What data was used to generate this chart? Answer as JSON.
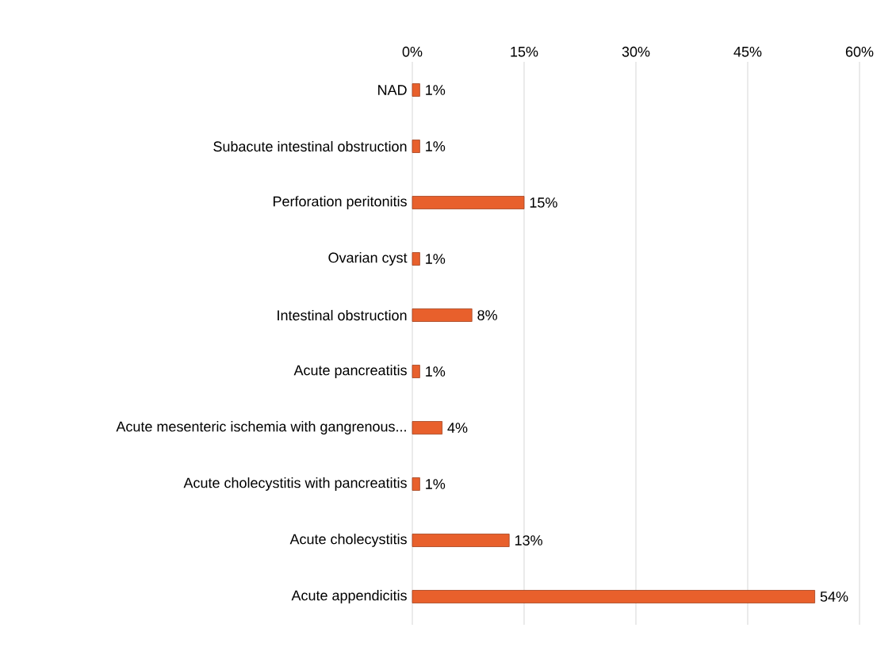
{
  "chart_data": {
    "type": "bar",
    "orientation": "horizontal",
    "categories": [
      "NAD",
      "Subacute intestinal obstruction",
      "Perforation peritonitis",
      "Ovarian cyst",
      "Intestinal obstruction",
      "Acute pancreatitis",
      "Acute mesenteric ischemia with gangrenous...",
      "Acute cholecystitis with pancreatitis",
      "Acute cholecystitis",
      "Acute appendicitis"
    ],
    "values": [
      1,
      1,
      15,
      1,
      8,
      1,
      4,
      1,
      13,
      54
    ],
    "value_labels": [
      "1%",
      "1%",
      "15%",
      "1%",
      "8%",
      "1%",
      "4%",
      "1%",
      "13%",
      "54%"
    ],
    "color": "#e8602c",
    "xlim": [
      0,
      60
    ],
    "xticks": [
      {
        "value": 0,
        "label": "0%"
      },
      {
        "value": 15,
        "label": "15%"
      },
      {
        "value": 30,
        "label": "30%"
      },
      {
        "value": 45,
        "label": "45%"
      },
      {
        "value": 60,
        "label": "60%"
      }
    ],
    "grid": "x"
  }
}
